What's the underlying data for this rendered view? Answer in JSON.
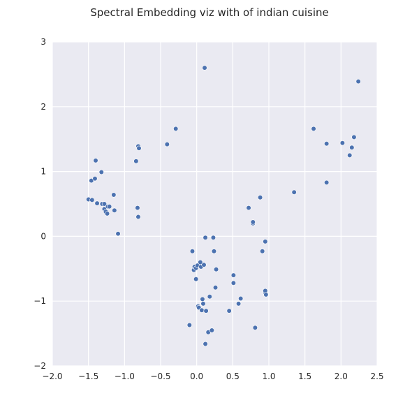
{
  "chart_data": {
    "type": "scatter",
    "title": "Spectral Embedding viz with of indian cuisine",
    "xlabel": "",
    "ylabel": "",
    "xlim": [
      -2.0,
      2.5
    ],
    "ylim": [
      -2,
      3
    ],
    "xticks": [
      "−2.0",
      "−1.5",
      "−1.0",
      "−0.5",
      "0.0",
      "0.5",
      "1.0",
      "1.5",
      "2.0",
      "2.5"
    ],
    "yticks": [
      "−2",
      "−1",
      "0",
      "1",
      "2",
      "3"
    ],
    "grid": true,
    "colors": {
      "background": "#eaeaf2",
      "grid": "#ffffff",
      "marker": "#4c72b0",
      "text": "#262626"
    },
    "x": [
      -1.5,
      -1.46,
      -1.45,
      -1.41,
      -1.4,
      -1.38,
      -1.32,
      -1.31,
      -1.28,
      -1.28,
      -1.26,
      -1.24,
      -1.23,
      -1.21,
      -1.15,
      -1.14,
      -1.09,
      -0.84,
      -0.82,
      -0.81,
      -0.81,
      -0.8,
      -0.41,
      -0.29,
      -0.1,
      -0.06,
      -0.04,
      -0.03,
      -0.01,
      -0.01,
      0.01,
      0.02,
      0.03,
      0.05,
      0.06,
      0.07,
      0.08,
      0.09,
      0.1,
      0.11,
      0.12,
      0.12,
      0.13,
      0.16,
      0.18,
      0.21,
      0.23,
      0.24,
      0.26,
      0.27,
      0.45,
      0.51,
      0.51,
      0.58,
      0.61,
      0.72,
      0.78,
      0.78,
      0.81,
      0.88,
      0.91,
      0.95,
      0.95,
      0.95,
      0.96,
      1.35,
      1.62,
      1.8,
      1.8,
      2.02,
      2.12,
      2.15,
      2.18,
      2.24
    ],
    "y": [
      0.57,
      0.86,
      0.56,
      0.89,
      1.17,
      0.51,
      0.99,
      0.5,
      0.42,
      0.5,
      0.38,
      0.35,
      0.46,
      0.46,
      0.64,
      0.4,
      0.04,
      1.16,
      0.44,
      1.39,
      0.3,
      1.36,
      1.42,
      1.66,
      -1.37,
      -0.23,
      -0.52,
      -0.47,
      -0.49,
      -0.66,
      -0.45,
      -1.08,
      -1.1,
      -0.4,
      -0.47,
      -1.14,
      -0.97,
      -1.04,
      -0.44,
      2.6,
      -1.66,
      -0.02,
      -1.15,
      -1.48,
      -0.93,
      -1.45,
      -0.02,
      -0.23,
      -0.79,
      -0.51,
      -1.15,
      -0.72,
      -0.6,
      -1.04,
      -0.96,
      0.44,
      0.2,
      0.22,
      -1.41,
      0.6,
      -0.23,
      -0.87,
      -0.08,
      -0.84,
      -0.9,
      0.68,
      1.66,
      1.43,
      0.83,
      1.44,
      1.25,
      1.37,
      1.53,
      2.39
    ]
  }
}
